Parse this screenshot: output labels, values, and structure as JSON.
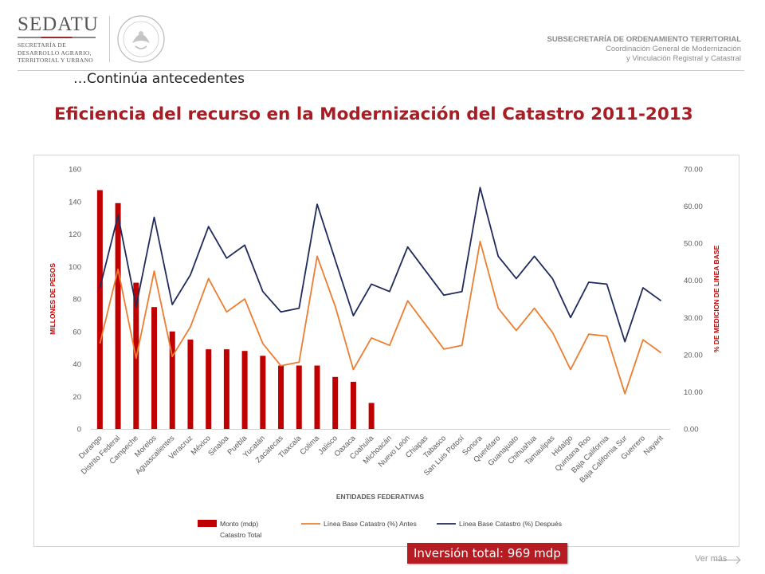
{
  "header": {
    "logo": {
      "name": "SEDATU",
      "subtitle_lines": [
        "SECRETARÍA DE",
        "DESARROLLO AGRARIO,",
        "TERRITORIAL Y URBANO"
      ]
    },
    "seal_icon": "mexican-coat-of-arms-seal",
    "subsecretaria": "SUBSECRETARÍA DE ORDENAMIENTO TERRITORIAL",
    "coordinacion_line1": "Coordinación General de Modernización",
    "coordinacion_line2": "y Vinculación Registral y Catastral"
  },
  "continua": "…Continúa antecedentes",
  "title": "Eficiencia del recurso en la Modernización del Catastro 2011-2013",
  "inversion": "Inversión total: 969 mdp",
  "ver_mas": "Ver más",
  "colors": {
    "title": "#a81d24",
    "bar": "#c00000",
    "antes": "#ed7d31",
    "despues": "#1f2a5c",
    "axis_label_red": "#c00000",
    "invest_bg": "#b61c22"
  },
  "chart_data": {
    "type": "bar",
    "xlabel": "ENTIDADES FEDERATIVAS",
    "ylabel_left": "MILLONES DE PESOS",
    "ylabel_right": "% DE MEDICION DE LINEA BASE",
    "ylim_left": [
      0,
      160
    ],
    "ylim_right": [
      0,
      70
    ],
    "yticks_left": [
      "0",
      "20",
      "40",
      "60",
      "80",
      "100",
      "120",
      "140",
      "160"
    ],
    "yticks_right": [
      "0.00",
      "10.00",
      "20.00",
      "30.00",
      "40.00",
      "50.00",
      "60.00",
      "70.00"
    ],
    "grid": false,
    "legend_position": "bottom",
    "categories": [
      "Durango",
      "Distrito Federal",
      "Campeche",
      "Morelos",
      "Aguascalientes",
      "Veracruz",
      "México",
      "Sinaloa",
      "Puebla",
      "Yucatán",
      "Zacatecas",
      "Tlaxcala",
      "Colima",
      "Jalisco",
      "Oaxaca",
      "Coahuila",
      "Michoacán",
      "Nuevo León",
      "Chiapas",
      "Tabasco",
      "San Luis Potosí",
      "Sonora",
      "Querétaro",
      "Guanajuato",
      "Chihuahua",
      "Tamaulipas",
      "Hidalgo",
      "Quintana Roo",
      "Baja California",
      "Baja California Sur",
      "Guerrero",
      "Nayarit"
    ],
    "series": [
      {
        "name": "Monto (mdp) Catastro Total",
        "name_lines": [
          "Monto (mdp)",
          "Catastro Total"
        ],
        "type": "bar",
        "axis": "left",
        "color": "#c00000",
        "values": [
          147,
          139,
          90,
          75,
          60,
          55,
          49,
          49,
          48,
          45,
          39,
          39,
          39,
          32,
          29,
          16,
          null,
          null,
          null,
          null,
          null,
          null,
          null,
          null,
          null,
          null,
          null,
          null,
          null,
          null,
          null,
          null
        ]
      },
      {
        "name": "Línea Base Catastro (%) Antes",
        "type": "line",
        "axis": "right",
        "color": "#ed7d31",
        "values": [
          23.0,
          43.0,
          19.0,
          42.5,
          19.5,
          27.5,
          40.5,
          31.5,
          35.0,
          23.0,
          17.0,
          18.0,
          46.5,
          33.0,
          16.0,
          24.5,
          22.5,
          34.5,
          28.0,
          21.5,
          22.5,
          50.5,
          32.5,
          26.5,
          32.5,
          26.0,
          16.0,
          25.5,
          25.0,
          9.5,
          24.0,
          20.5
        ]
      },
      {
        "name": "Línea Base Catastro (%) Después",
        "type": "line",
        "axis": "right",
        "color": "#1f2a5c",
        "values": [
          38.0,
          57.5,
          33.0,
          57.0,
          33.5,
          41.5,
          54.5,
          46.0,
          49.5,
          37.0,
          31.5,
          32.5,
          60.5,
          45.5,
          30.5,
          39.0,
          37.0,
          49.0,
          42.5,
          36.0,
          37.0,
          65.0,
          46.5,
          40.5,
          46.5,
          40.5,
          30.0,
          39.5,
          39.0,
          23.5,
          38.0,
          34.5
        ]
      }
    ]
  }
}
